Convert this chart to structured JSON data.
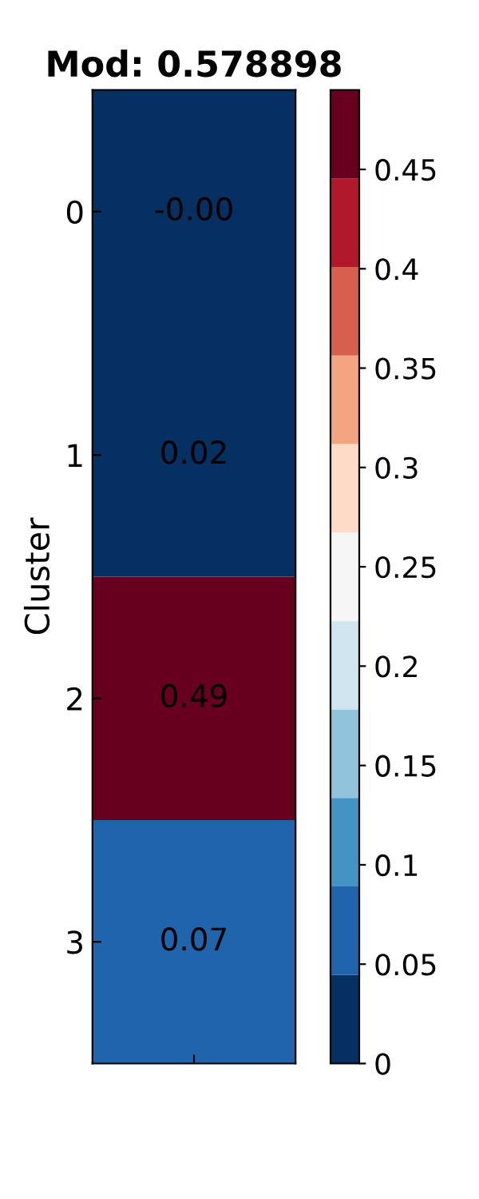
{
  "chart_data": {
    "type": "heatmap",
    "title": "Mod: 0.578898",
    "ylabel": "Cluster",
    "categories": [
      null
    ],
    "y_categories": [
      "0",
      "1",
      "2",
      "3"
    ],
    "cells": [
      [
        0.0
      ],
      [
        0.02
      ],
      [
        0.49
      ],
      [
        0.07
      ]
    ],
    "cell_labels": [
      [
        "-0.00"
      ],
      [
        "0.02"
      ],
      [
        "0.49"
      ],
      [
        "0.07"
      ]
    ],
    "clim": [
      0,
      0.49
    ],
    "cticks": [
      0,
      0.05,
      0.1,
      0.15,
      0.2,
      0.25,
      0.3,
      0.35,
      0.4,
      0.45
    ]
  }
}
